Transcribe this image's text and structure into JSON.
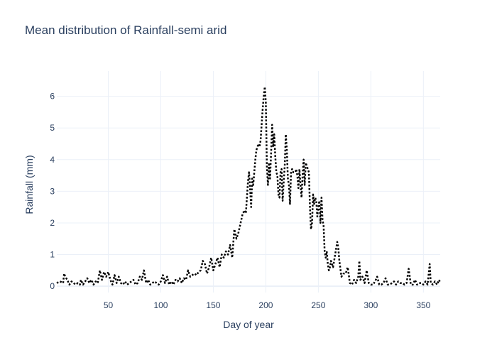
{
  "chart_data": {
    "type": "line",
    "title": "Mean distribution of Rainfall-semi arid",
    "xlabel": "Day of year",
    "ylabel": "Rainfall (mm)",
    "xlim": [
      1,
      366
    ],
    "ylim": [
      -0.2,
      6.8
    ],
    "x_ticks": [
      50,
      100,
      150,
      200,
      250,
      300,
      350
    ],
    "y_ticks": [
      0,
      1,
      2,
      3,
      4,
      5,
      6
    ],
    "grid": true,
    "legend": "none",
    "line_style": "dotted",
    "line_color": "#000000",
    "series": [
      {
        "points": [
          [
            1,
            0.1
          ],
          [
            4,
            0.15
          ],
          [
            7,
            0.1
          ],
          [
            8,
            0.4
          ],
          [
            9,
            0.3
          ],
          [
            11,
            0.2
          ],
          [
            13,
            0.05
          ],
          [
            15,
            0.15
          ],
          [
            17,
            0.1
          ],
          [
            19,
            0.05
          ],
          [
            21,
            0.1
          ],
          [
            23,
            0.05
          ],
          [
            24,
            0.2
          ],
          [
            26,
            0.05
          ],
          [
            28,
            0.15
          ],
          [
            30,
            0.25
          ],
          [
            32,
            0.1
          ],
          [
            34,
            0.2
          ],
          [
            36,
            0.05
          ],
          [
            38,
            0.15
          ],
          [
            40,
            0.1
          ],
          [
            42,
            0.5
          ],
          [
            44,
            0.2
          ],
          [
            46,
            0.45
          ],
          [
            48,
            0.3
          ],
          [
            50,
            0.45
          ],
          [
            52,
            0.2
          ],
          [
            54,
            0.05
          ],
          [
            56,
            0.35
          ],
          [
            58,
            0.1
          ],
          [
            60,
            0.3
          ],
          [
            62,
            0.1
          ],
          [
            64,
            0.05
          ],
          [
            66,
            0.15
          ],
          [
            68,
            0.05
          ],
          [
            70,
            0.1
          ],
          [
            72,
            0.15
          ],
          [
            74,
            0.2
          ],
          [
            76,
            0.05
          ],
          [
            78,
            0.1
          ],
          [
            80,
            0.3
          ],
          [
            82,
            0.2
          ],
          [
            84,
            0.5
          ],
          [
            86,
            0.1
          ],
          [
            88,
            0.2
          ],
          [
            90,
            0.05
          ],
          [
            92,
            0.1
          ],
          [
            94,
            0.15
          ],
          [
            96,
            0.1
          ],
          [
            98,
            0.05
          ],
          [
            100,
            0.15
          ],
          [
            102,
            0.35
          ],
          [
            104,
            0.1
          ],
          [
            106,
            0.3
          ],
          [
            108,
            0.05
          ],
          [
            110,
            0.15
          ],
          [
            112,
            0.05
          ],
          [
            114,
            0.2
          ],
          [
            116,
            0.15
          ],
          [
            118,
            0.25
          ],
          [
            120,
            0.1
          ],
          [
            122,
            0.25
          ],
          [
            124,
            0.2
          ],
          [
            126,
            0.5
          ],
          [
            128,
            0.3
          ],
          [
            130,
            0.35
          ],
          [
            132,
            0.4
          ],
          [
            134,
            0.35
          ],
          [
            136,
            0.45
          ],
          [
            138,
            0.5
          ],
          [
            140,
            0.8
          ],
          [
            142,
            0.7
          ],
          [
            144,
            0.4
          ],
          [
            146,
            0.6
          ],
          [
            148,
            0.9
          ],
          [
            150,
            0.5
          ],
          [
            152,
            0.7
          ],
          [
            154,
            0.9
          ],
          [
            156,
            0.6
          ],
          [
            158,
            1.0
          ],
          [
            160,
            0.9
          ],
          [
            162,
            1.1
          ],
          [
            164,
            1.0
          ],
          [
            166,
            1.3
          ],
          [
            168,
            0.9
          ],
          [
            170,
            1.8
          ],
          [
            172,
            1.5
          ],
          [
            174,
            1.7
          ],
          [
            176,
            2.0
          ],
          [
            178,
            2.3
          ],
          [
            180,
            2.4
          ],
          [
            181,
            2.3
          ],
          [
            182,
            2.8
          ],
          [
            183,
            3.3
          ],
          [
            184,
            3.6
          ],
          [
            185,
            3.1
          ],
          [
            186,
            2.5
          ],
          [
            187,
            3.4
          ],
          [
            188,
            3.2
          ],
          [
            189,
            3.6
          ],
          [
            190,
            4.0
          ],
          [
            191,
            4.3
          ],
          [
            192,
            4.4
          ],
          [
            193,
            4.5
          ],
          [
            194,
            4.4
          ],
          [
            195,
            4.6
          ],
          [
            196,
            5.1
          ],
          [
            197,
            5.6
          ],
          [
            198,
            6.0
          ],
          [
            199,
            6.3
          ],
          [
            200,
            5.8
          ],
          [
            201,
            3.8
          ],
          [
            202,
            3.2
          ],
          [
            203,
            3.9
          ],
          [
            204,
            3.4
          ],
          [
            205,
            4.2
          ],
          [
            206,
            5.1
          ],
          [
            207,
            4.4
          ],
          [
            208,
            4.8
          ],
          [
            209,
            4.1
          ],
          [
            210,
            3.6
          ],
          [
            211,
            3.5
          ],
          [
            212,
            2.9
          ],
          [
            213,
            2.8
          ],
          [
            214,
            3.6
          ],
          [
            215,
            3.7
          ],
          [
            216,
            2.7
          ],
          [
            217,
            3.3
          ],
          [
            218,
            3.8
          ],
          [
            219,
            4.8
          ],
          [
            220,
            4.3
          ],
          [
            221,
            3.4
          ],
          [
            222,
            3.2
          ],
          [
            223,
            2.6
          ],
          [
            224,
            3.6
          ],
          [
            225,
            3.7
          ],
          [
            226,
            3.6
          ],
          [
            227,
            3.6
          ],
          [
            228,
            3.6
          ],
          [
            229,
            3.7
          ],
          [
            230,
            3.5
          ],
          [
            231,
            3.1
          ],
          [
            232,
            3.7
          ],
          [
            233,
            3.2
          ],
          [
            234,
            2.8
          ],
          [
            235,
            3.5
          ],
          [
            236,
            4.0
          ],
          [
            237,
            3.2
          ],
          [
            238,
            3.9
          ],
          [
            239,
            3.8
          ],
          [
            240,
            3.7
          ],
          [
            241,
            3.6
          ],
          [
            242,
            2.5
          ],
          [
            243,
            1.8
          ],
          [
            244,
            2.0
          ],
          [
            245,
            2.9
          ],
          [
            246,
            2.6
          ],
          [
            247,
            2.8
          ],
          [
            248,
            2.7
          ],
          [
            249,
            2.2
          ],
          [
            250,
            2.5
          ],
          [
            251,
            2.7
          ],
          [
            252,
            2.0
          ],
          [
            253,
            2.8
          ],
          [
            254,
            2.1
          ],
          [
            255,
            1.9
          ],
          [
            256,
            1.1
          ],
          [
            257,
            0.9
          ],
          [
            258,
            1.1
          ],
          [
            259,
            0.7
          ],
          [
            260,
            0.5
          ],
          [
            261,
            0.6
          ],
          [
            262,
            0.8
          ],
          [
            264,
            0.6
          ],
          [
            266,
            1.0
          ],
          [
            268,
            1.4
          ],
          [
            269,
            1.2
          ],
          [
            270,
            0.8
          ],
          [
            272,
            0.3
          ],
          [
            274,
            0.4
          ],
          [
            276,
            0.4
          ],
          [
            278,
            0.6
          ],
          [
            280,
            0.1
          ],
          [
            282,
            0.05
          ],
          [
            284,
            0.2
          ],
          [
            286,
            0.1
          ],
          [
            288,
            0.3
          ],
          [
            289,
            0.8
          ],
          [
            290,
            0.2
          ],
          [
            292,
            0.3
          ],
          [
            294,
            0.1
          ],
          [
            296,
            0.5
          ],
          [
            298,
            0.1
          ],
          [
            300,
            0.05
          ],
          [
            302,
            0.05
          ],
          [
            304,
            0.15
          ],
          [
            306,
            0.3
          ],
          [
            308,
            0.05
          ],
          [
            310,
            0.05
          ],
          [
            312,
            0.1
          ],
          [
            314,
            0.25
          ],
          [
            316,
            0.05
          ],
          [
            318,
            0.05
          ],
          [
            320,
            0.1
          ],
          [
            322,
            0.15
          ],
          [
            324,
            0.05
          ],
          [
            326,
            0.15
          ],
          [
            328,
            0.1
          ],
          [
            330,
            0.1
          ],
          [
            332,
            0.05
          ],
          [
            334,
            0.1
          ],
          [
            336,
            0.55
          ],
          [
            338,
            0.05
          ],
          [
            340,
            0.05
          ],
          [
            342,
            0.2
          ],
          [
            344,
            0.05
          ],
          [
            346,
            0.1
          ],
          [
            348,
            0.1
          ],
          [
            350,
            0.05
          ],
          [
            352,
            0.15
          ],
          [
            354,
            0.05
          ],
          [
            356,
            0.7
          ],
          [
            357,
            0.1
          ],
          [
            359,
            0.05
          ],
          [
            361,
            0.15
          ],
          [
            363,
            0.05
          ],
          [
            365,
            0.2
          ],
          [
            366,
            0.1
          ]
        ]
      }
    ]
  }
}
